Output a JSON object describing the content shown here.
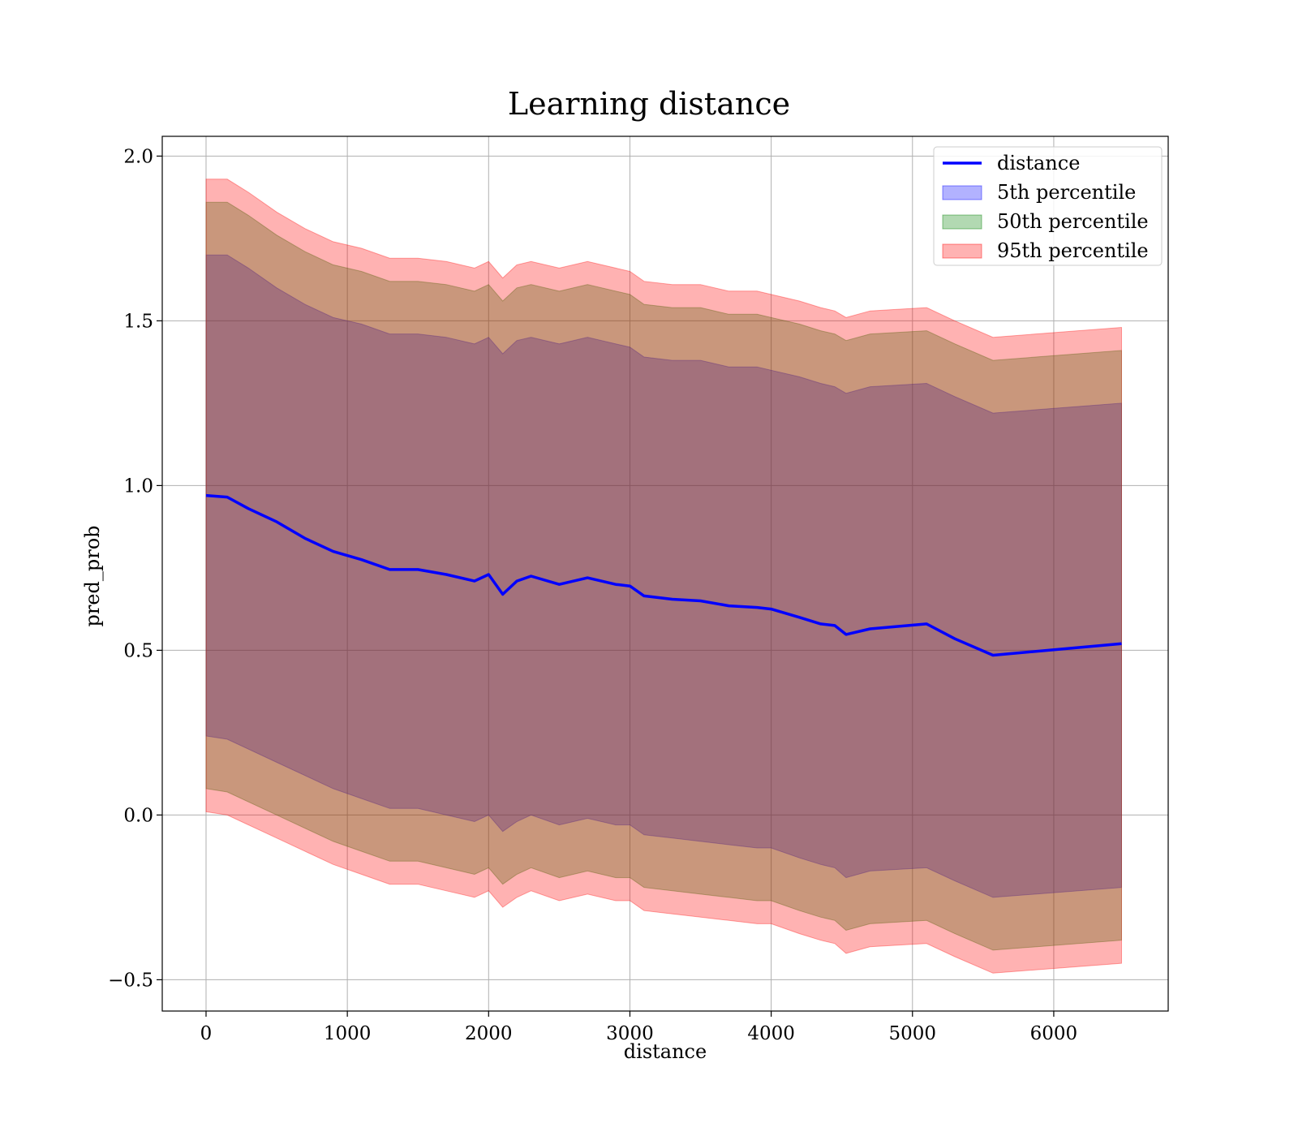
{
  "chart_data": {
    "type": "area",
    "title": "Learning distance",
    "xlabel": "distance",
    "ylabel": "pred_prob",
    "xlim": [
      -310,
      6810
    ],
    "ylim": [
      -0.595,
      2.06
    ],
    "x_ticks": [
      0,
      1000,
      2000,
      3000,
      4000,
      5000,
      6000
    ],
    "y_ticks": [
      -0.5,
      0.0,
      0.5,
      1.0,
      1.5,
      2.0
    ],
    "x_tick_labels": [
      "0",
      "1000",
      "2000",
      "3000",
      "4000",
      "5000",
      "6000"
    ],
    "y_tick_labels": [
      "−0.5",
      "0.0",
      "0.5",
      "1.0",
      "1.5",
      "2.0"
    ],
    "grid": true,
    "legend_position": "top-right",
    "x": [
      0,
      150,
      300,
      500,
      700,
      900,
      1100,
      1300,
      1500,
      1700,
      1900,
      2000,
      2100,
      2200,
      2300,
      2500,
      2700,
      2900,
      3000,
      3100,
      3300,
      3500,
      3700,
      3900,
      4000,
      4200,
      4350,
      4450,
      4530,
      4700,
      5100,
      5300,
      5570,
      6480
    ],
    "series": [
      {
        "name": "distance",
        "kind": "line",
        "color": "#0000ff",
        "values": [
          0.97,
          0.965,
          0.93,
          0.89,
          0.84,
          0.8,
          0.775,
          0.745,
          0.745,
          0.73,
          0.71,
          0.73,
          0.67,
          0.71,
          0.725,
          0.7,
          0.72,
          0.7,
          0.695,
          0.665,
          0.655,
          0.65,
          0.635,
          0.63,
          0.625,
          0.6,
          0.58,
          0.575,
          0.548,
          0.565,
          0.58,
          0.535,
          0.485,
          0.52
        ]
      },
      {
        "name": "5th percentile",
        "kind": "band",
        "color": "#0000ff",
        "upper": [
          1.7,
          1.7,
          1.66,
          1.6,
          1.55,
          1.51,
          1.49,
          1.46,
          1.46,
          1.45,
          1.43,
          1.45,
          1.4,
          1.44,
          1.45,
          1.43,
          1.45,
          1.43,
          1.42,
          1.39,
          1.38,
          1.38,
          1.36,
          1.36,
          1.35,
          1.33,
          1.31,
          1.3,
          1.28,
          1.3,
          1.31,
          1.27,
          1.22,
          1.25
        ],
        "lower": [
          0.24,
          0.23,
          0.2,
          0.16,
          0.12,
          0.08,
          0.05,
          0.02,
          0.02,
          0.0,
          -0.02,
          0.0,
          -0.05,
          -0.02,
          0.0,
          -0.03,
          -0.01,
          -0.03,
          -0.03,
          -0.06,
          -0.07,
          -0.08,
          -0.09,
          -0.1,
          -0.1,
          -0.13,
          -0.15,
          -0.16,
          -0.19,
          -0.17,
          -0.16,
          -0.2,
          -0.25,
          -0.22
        ]
      },
      {
        "name": "50th percentile",
        "kind": "band",
        "color": "#008000",
        "upper": [
          1.86,
          1.86,
          1.82,
          1.76,
          1.71,
          1.67,
          1.65,
          1.62,
          1.62,
          1.61,
          1.59,
          1.61,
          1.56,
          1.6,
          1.61,
          1.59,
          1.61,
          1.59,
          1.58,
          1.55,
          1.54,
          1.54,
          1.52,
          1.52,
          1.51,
          1.49,
          1.47,
          1.46,
          1.44,
          1.46,
          1.47,
          1.43,
          1.38,
          1.41
        ],
        "lower": [
          0.08,
          0.07,
          0.04,
          0.0,
          -0.04,
          -0.08,
          -0.11,
          -0.14,
          -0.14,
          -0.16,
          -0.18,
          -0.16,
          -0.21,
          -0.18,
          -0.16,
          -0.19,
          -0.17,
          -0.19,
          -0.19,
          -0.22,
          -0.23,
          -0.24,
          -0.25,
          -0.26,
          -0.26,
          -0.29,
          -0.31,
          -0.32,
          -0.35,
          -0.33,
          -0.32,
          -0.36,
          -0.41,
          -0.38
        ]
      },
      {
        "name": "95th percentile",
        "kind": "band",
        "color": "#ff0000",
        "upper": [
          1.93,
          1.93,
          1.89,
          1.83,
          1.78,
          1.74,
          1.72,
          1.69,
          1.69,
          1.68,
          1.66,
          1.68,
          1.63,
          1.67,
          1.68,
          1.66,
          1.68,
          1.66,
          1.65,
          1.62,
          1.61,
          1.61,
          1.59,
          1.59,
          1.58,
          1.56,
          1.54,
          1.53,
          1.51,
          1.53,
          1.54,
          1.5,
          1.45,
          1.48
        ],
        "lower": [
          0.01,
          0.0,
          -0.03,
          -0.07,
          -0.11,
          -0.15,
          -0.18,
          -0.21,
          -0.21,
          -0.23,
          -0.25,
          -0.23,
          -0.28,
          -0.25,
          -0.23,
          -0.26,
          -0.24,
          -0.26,
          -0.26,
          -0.29,
          -0.3,
          -0.31,
          -0.32,
          -0.33,
          -0.33,
          -0.36,
          -0.38,
          -0.39,
          -0.42,
          -0.4,
          -0.39,
          -0.43,
          -0.48,
          -0.45
        ]
      }
    ],
    "band_alpha": 0.3
  }
}
